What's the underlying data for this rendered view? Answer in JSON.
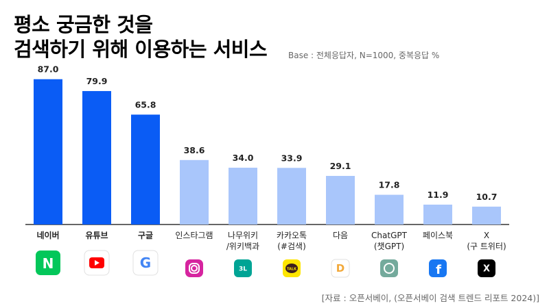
{
  "title_line1": "평소 궁금한 것을",
  "title_line2": "검색하기 위해 이용하는 서비스",
  "subtitle": "Base : 전체응답자, N=1000, 중복응답 %",
  "source": "[자료 : 오픈서베이, (오픈서베이 검색 트렌드 리포트 2024)]",
  "colors": {
    "primary": "#0a5cf5",
    "secondary": "#a9c6fb",
    "axis": "#333333"
  },
  "chart_data": {
    "type": "bar",
    "categories": [
      [
        "네이버"
      ],
      [
        "유튜브"
      ],
      [
        "구글"
      ],
      [
        "인스타그램"
      ],
      [
        "나무위키",
        "/위키백과"
      ],
      [
        "카카오톡",
        "(#검색)"
      ],
      [
        "다음"
      ],
      [
        "ChatGPT",
        "(챗GPT)"
      ],
      [
        "페이스북"
      ],
      [
        "X",
        "(구 트위터)"
      ]
    ],
    "values": [
      87.0,
      79.9,
      65.8,
      38.6,
      34.0,
      33.9,
      29.1,
      17.8,
      11.9,
      10.7
    ],
    "value_labels": [
      "87.0",
      "79.9",
      "65.8",
      "38.6",
      "34.0",
      "33.9",
      "29.1",
      "17.8",
      "11.9",
      "10.7"
    ],
    "highlight_top": 3,
    "ylim": [
      0,
      100
    ],
    "title": "",
    "xlabel": "",
    "ylabel": "",
    "grid": false,
    "legend": "none",
    "icons": [
      "naver-icon",
      "youtube-icon",
      "google-icon",
      "instagram-icon",
      "namuwiki-icon",
      "kakaotalk-icon",
      "daum-icon",
      "chatgpt-icon",
      "facebook-icon",
      "x-icon"
    ],
    "icon_marks": {
      "naver": "N",
      "namuwiki": "3L",
      "kakaotalk": "TALK",
      "daum": "D",
      "x": "X",
      "facebook": "f",
      "google": "G"
    }
  }
}
